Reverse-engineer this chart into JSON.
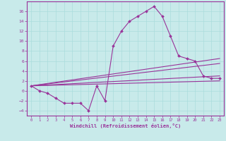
{
  "xlabel": "Windchill (Refroidissement éolien,°C)",
  "background_color": "#c8eaea",
  "grid_color": "#aadddd",
  "line_color": "#993399",
  "xlim": [
    -0.5,
    23.5
  ],
  "ylim": [
    -5,
    18
  ],
  "xticks": [
    0,
    1,
    2,
    3,
    4,
    5,
    6,
    7,
    8,
    9,
    10,
    11,
    12,
    13,
    14,
    15,
    16,
    17,
    18,
    19,
    20,
    21,
    22,
    23
  ],
  "yticks": [
    -4,
    -2,
    0,
    2,
    4,
    6,
    8,
    10,
    12,
    14,
    16
  ],
  "main_x": [
    0,
    1,
    2,
    3,
    4,
    5,
    6,
    7,
    8,
    9,
    10,
    11,
    12,
    13,
    14,
    15,
    16,
    17,
    18,
    19,
    20,
    21,
    22,
    23
  ],
  "main_y": [
    1,
    0,
    -0.5,
    -1.5,
    -2.5,
    -2.5,
    -2.5,
    -4,
    1,
    -2,
    9,
    12,
    14,
    15,
    16,
    17,
    15,
    11,
    7,
    6.5,
    6,
    3,
    2.5,
    2.5
  ],
  "line1_x": [
    0,
    23
  ],
  "line1_y": [
    1.0,
    6.5
  ],
  "line2_x": [
    0,
    23
  ],
  "line2_y": [
    1.0,
    5.5
  ],
  "line3_x": [
    0,
    23
  ],
  "line3_y": [
    1.0,
    3.0
  ],
  "line4_x": [
    0,
    23
  ],
  "line4_y": [
    1.0,
    2.0
  ]
}
